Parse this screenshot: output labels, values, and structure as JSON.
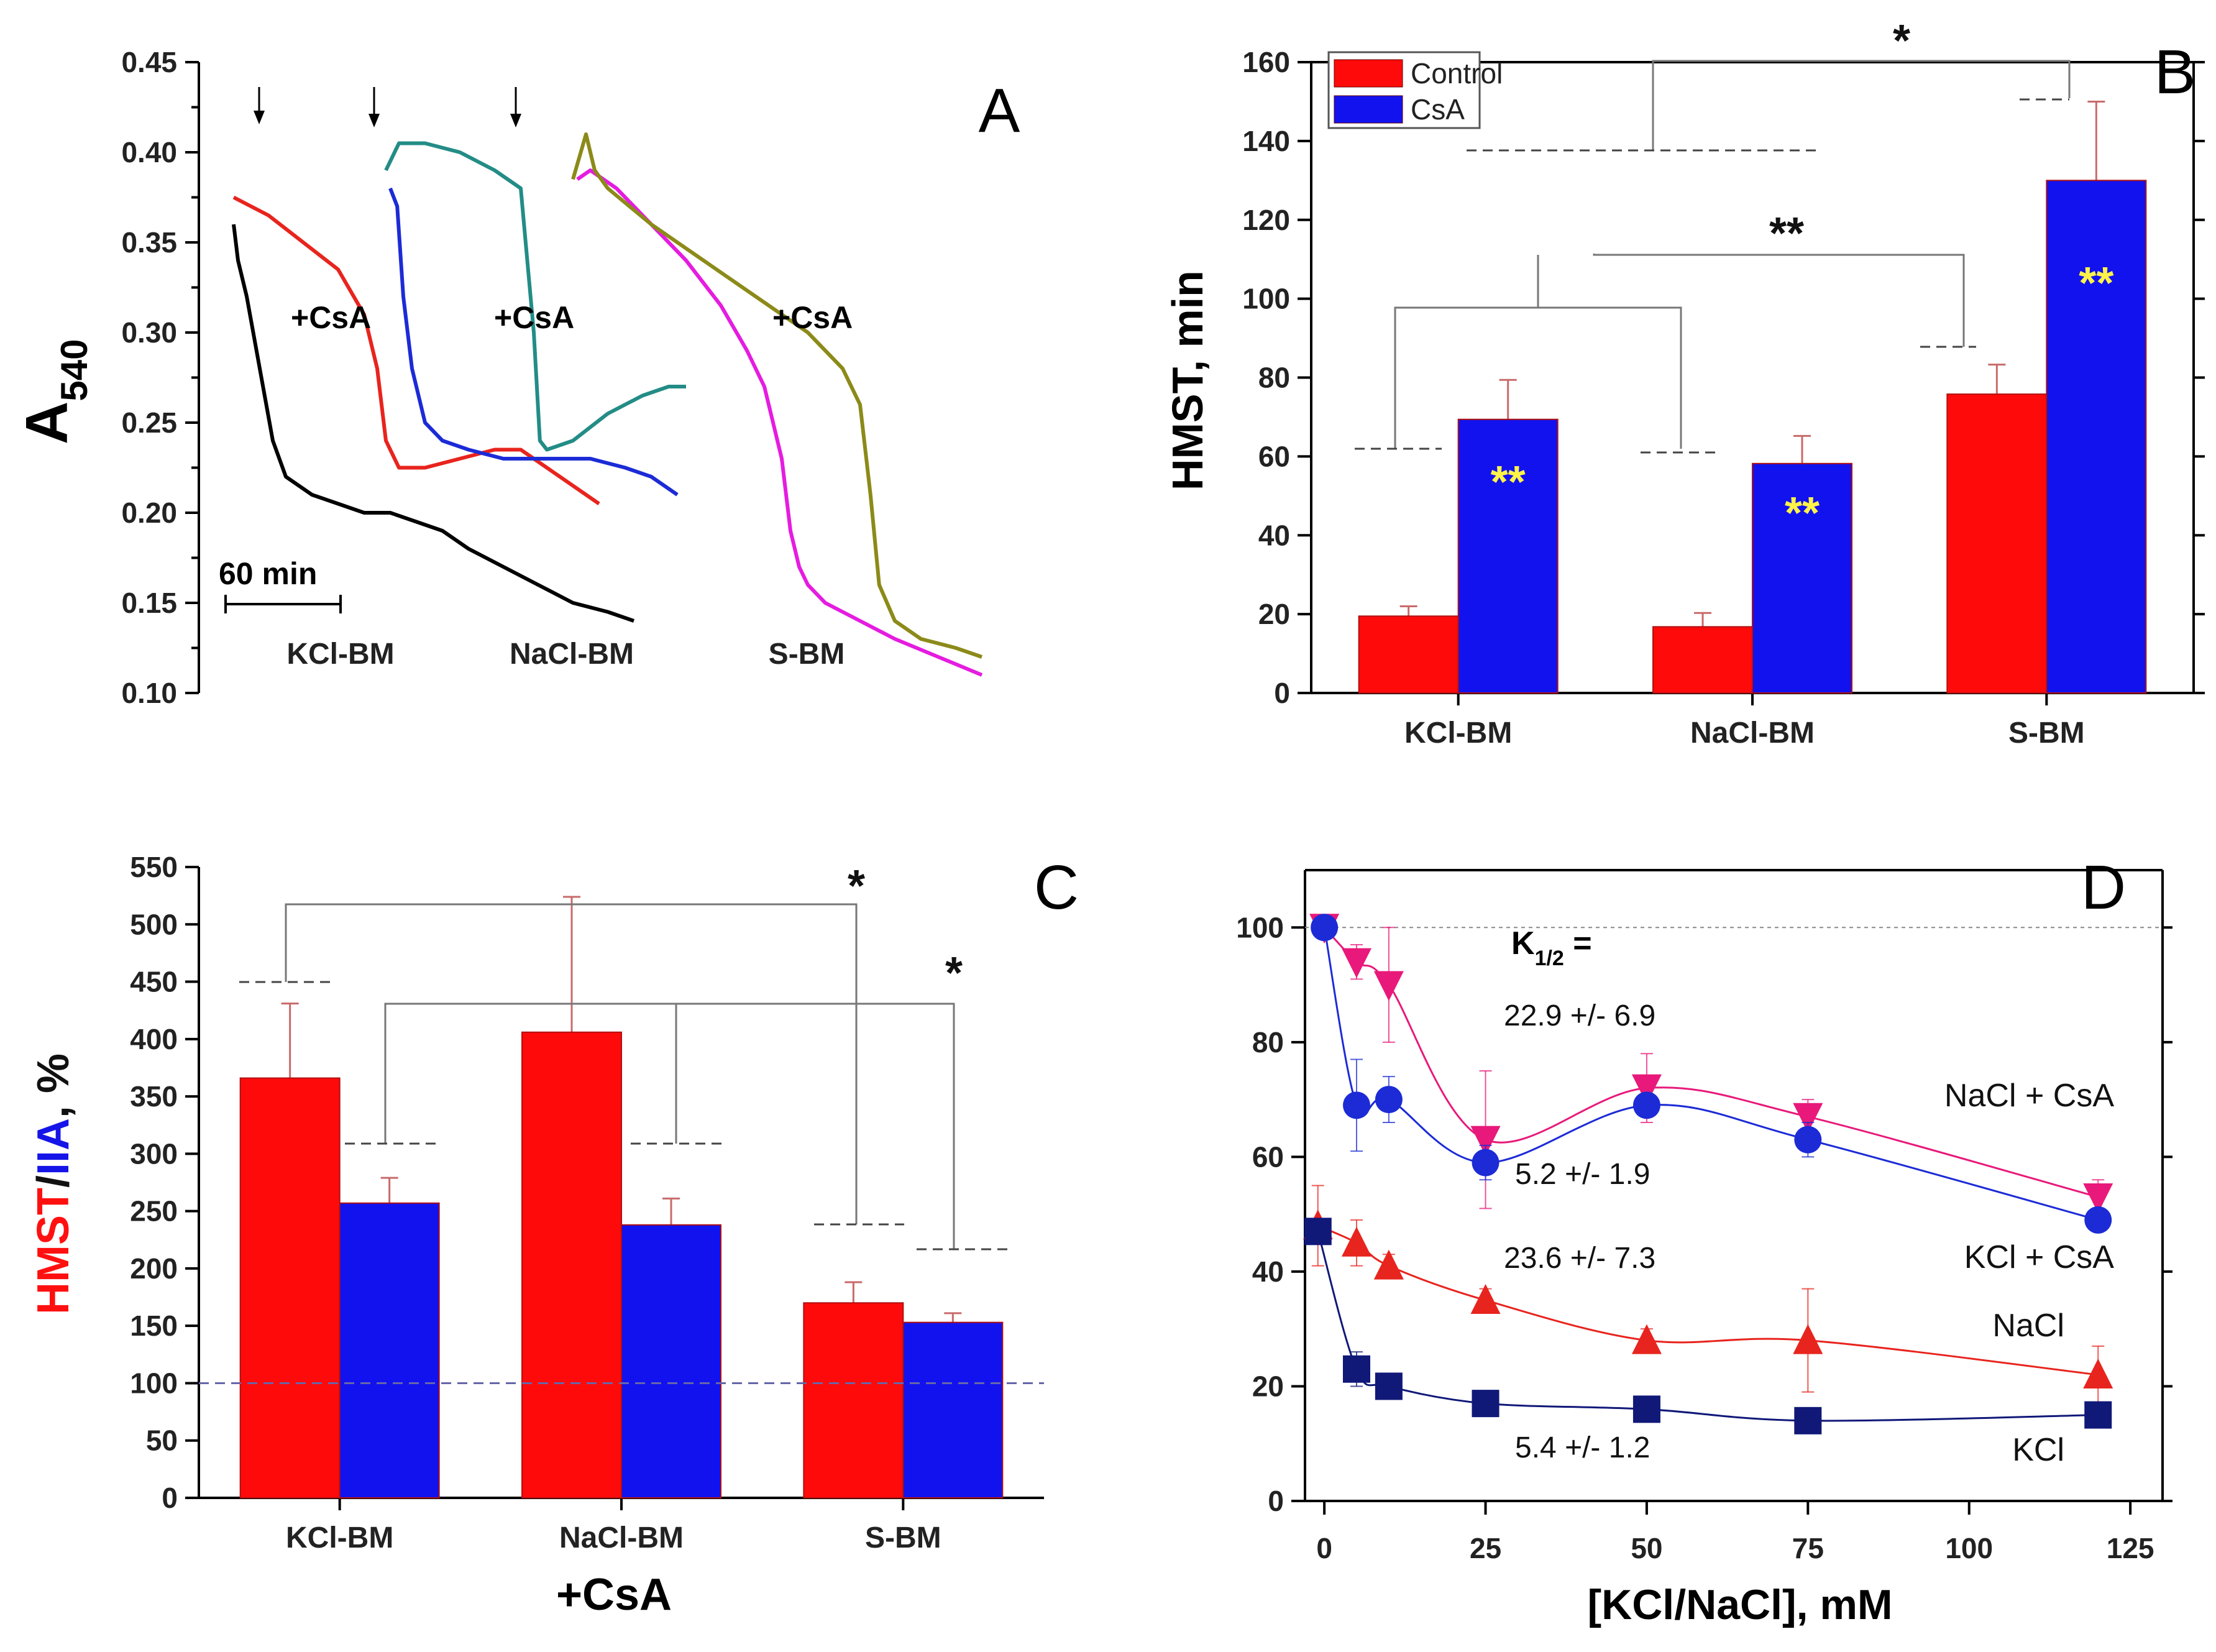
{
  "chart_data": [
    {
      "panel": "A",
      "type": "line",
      "ylabel": "A",
      "ylabel_sub": "540",
      "ylim": [
        0.1,
        0.45
      ],
      "yticks": [
        "0.45",
        "0.40",
        "0.35",
        "0.30",
        "0.25",
        "0.20",
        "0.15",
        "0.10"
      ],
      "scale_bar": "60 min",
      "arrows": 3,
      "annotations": [
        "+CsA",
        "+CsA",
        "+CsA"
      ],
      "groups": [
        "KCl-BM",
        "NaCl-BM",
        "S-BM"
      ],
      "series": [
        {
          "name": "KCl-BM control",
          "color": "#000000",
          "x": [
            40,
            45,
            55,
            70,
            85,
            100,
            130,
            160,
            190,
            220,
            250,
            280,
            310,
            350,
            390,
            430,
            470,
            500
          ],
          "y": [
            0.36,
            0.34,
            0.32,
            0.28,
            0.24,
            0.22,
            0.21,
            0.205,
            0.2,
            0.2,
            0.195,
            0.19,
            0.18,
            0.17,
            0.16,
            0.15,
            0.145,
            0.14
          ]
        },
        {
          "name": "KCl-BM +CsA",
          "color": "#e8241e",
          "x": [
            40,
            80,
            120,
            160,
            190,
            205,
            215,
            230,
            260,
            300,
            340,
            370,
            400,
            430,
            460
          ],
          "y": [
            0.375,
            0.365,
            0.35,
            0.335,
            0.31,
            0.28,
            0.24,
            0.225,
            0.225,
            0.23,
            0.235,
            0.235,
            0.225,
            0.215,
            0.205
          ]
        },
        {
          "name": "NaCl-BM control",
          "color": "#1c2bd6",
          "x": [
            220,
            228,
            235,
            245,
            260,
            280,
            310,
            350,
            400,
            450,
            490,
            520,
            550
          ],
          "y": [
            0.38,
            0.37,
            0.32,
            0.28,
            0.25,
            0.24,
            0.235,
            0.23,
            0.23,
            0.23,
            0.225,
            0.22,
            0.21
          ]
        },
        {
          "name": "NaCl-BM +CsA",
          "color": "#238c86",
          "x": [
            215,
            230,
            260,
            300,
            340,
            370,
            385,
            392,
            400,
            430,
            470,
            510,
            540,
            560
          ],
          "y": [
            0.39,
            0.405,
            0.405,
            0.4,
            0.39,
            0.38,
            0.3,
            0.24,
            0.235,
            0.24,
            0.255,
            0.265,
            0.27,
            0.27
          ]
        },
        {
          "name": "S-BM control",
          "color": "#e51ce0",
          "x": [
            435,
            450,
            480,
            520,
            560,
            600,
            630,
            650,
            670,
            680,
            690,
            700,
            720,
            760,
            800,
            850,
            900
          ],
          "y": [
            0.385,
            0.39,
            0.38,
            0.36,
            0.34,
            0.315,
            0.29,
            0.27,
            0.23,
            0.19,
            0.17,
            0.16,
            0.15,
            0.14,
            0.13,
            0.12,
            0.11
          ]
        },
        {
          "name": "S-BM +CsA",
          "color": "#8c8a19",
          "x": [
            430,
            445,
            455,
            470,
            520,
            580,
            640,
            700,
            740,
            760,
            772,
            782,
            800,
            830,
            870,
            900
          ],
          "y": [
            0.385,
            0.41,
            0.39,
            0.38,
            0.36,
            0.34,
            0.32,
            0.3,
            0.28,
            0.26,
            0.21,
            0.16,
            0.14,
            0.13,
            0.125,
            0.12
          ]
        }
      ]
    },
    {
      "panel": "B",
      "type": "bar",
      "ylabel": "HMST, min",
      "ylim": [
        0,
        160
      ],
      "yticks": [
        "0",
        "20",
        "40",
        "60",
        "80",
        "100",
        "120",
        "140",
        "160"
      ],
      "categories": [
        "KCl-BM",
        "NaCl-BM",
        "S-BM"
      ],
      "series": [
        {
          "name": "Control",
          "color": "#ff0a0a",
          "values": [
            19.5,
            16.8,
            75.8
          ],
          "errors": [
            2.5,
            3.5,
            7.5
          ]
        },
        {
          "name": "CsA",
          "color": "#1212ee",
          "values": [
            69.4,
            58.2,
            130
          ],
          "errors": [
            10,
            7,
            20
          ]
        }
      ],
      "legend": "top-left",
      "significance": [
        "*",
        "**"
      ],
      "bar_marks": [
        "**",
        "**",
        "**"
      ]
    },
    {
      "panel": "C",
      "type": "bar",
      "ylabel_red": "HMST",
      "ylabel_sep": "/",
      "ylabel_blue": "IIA",
      "ylabel_unit": ", %",
      "xlabel": "+CsA",
      "ylim": [
        0,
        550
      ],
      "yticks": [
        "0",
        "50",
        "100",
        "150",
        "200",
        "250",
        "300",
        "350",
        "400",
        "450",
        "500",
        "550"
      ],
      "categories": [
        "KCl-BM",
        "NaCl-BM",
        "S-BM"
      ],
      "reference_line": 100,
      "series": [
        {
          "name": "HMST",
          "color": "#ff0a0a",
          "values": [
            366,
            406,
            170
          ],
          "errors": [
            65,
            118,
            18
          ]
        },
        {
          "name": "IIA",
          "color": "#1212ee",
          "values": [
            257,
            238,
            153
          ],
          "errors": [
            22,
            23,
            8
          ]
        }
      ],
      "significance": [
        "*",
        "*"
      ]
    },
    {
      "panel": "D",
      "type": "scatter",
      "xlabel": "[KCl/NaCl], mM",
      "xlim": [
        -3,
        130
      ],
      "ylim": [
        0,
        110
      ],
      "xticks": [
        "0",
        "25",
        "50",
        "75",
        "100",
        "125"
      ],
      "yticks": [
        "0",
        "20",
        "40",
        "60",
        "80",
        "100"
      ],
      "reference_line": 100,
      "k_label": "K",
      "k_sub": "1/2",
      "k_eq": " =",
      "k_values": [
        "22.9 +/- 6.9",
        "5.2 +/- 1.9",
        "23.6 +/- 7.3",
        "5.4 +/- 1.2"
      ],
      "series": [
        {
          "name": "NaCl + CsA",
          "color": "#e8197a",
          "marker": "triangle-down",
          "x": [
            0,
            5,
            10,
            25,
            50,
            75,
            120
          ],
          "y": [
            100,
            94,
            90,
            63,
            72,
            67,
            53
          ],
          "errors": [
            0,
            3,
            10,
            12,
            6,
            3,
            3
          ]
        },
        {
          "name": "KCl + CsA",
          "color": "#1c2bd6",
          "marker": "circle",
          "x": [
            0,
            5,
            10,
            25,
            50,
            75,
            120
          ],
          "y": [
            100,
            69,
            70,
            59,
            69,
            63,
            49
          ],
          "errors": [
            0,
            8,
            4,
            3,
            2,
            3,
            1
          ]
        },
        {
          "name": "NaCl",
          "color": "#e8241e",
          "marker": "triangle-up",
          "x": [
            -1,
            5,
            10,
            25,
            50,
            75,
            120
          ],
          "y": [
            48,
            45,
            41,
            35,
            28,
            28,
            22
          ],
          "errors": [
            7,
            4,
            2,
            2,
            2,
            9,
            5
          ]
        },
        {
          "name": "KCl",
          "color": "#101878",
          "marker": "square",
          "x": [
            -1,
            5,
            10,
            25,
            50,
            75,
            120
          ],
          "y": [
            47,
            23,
            20,
            17,
            16,
            14,
            15
          ],
          "errors": [
            2,
            3,
            2,
            2,
            2,
            1,
            2
          ]
        }
      ]
    }
  ]
}
